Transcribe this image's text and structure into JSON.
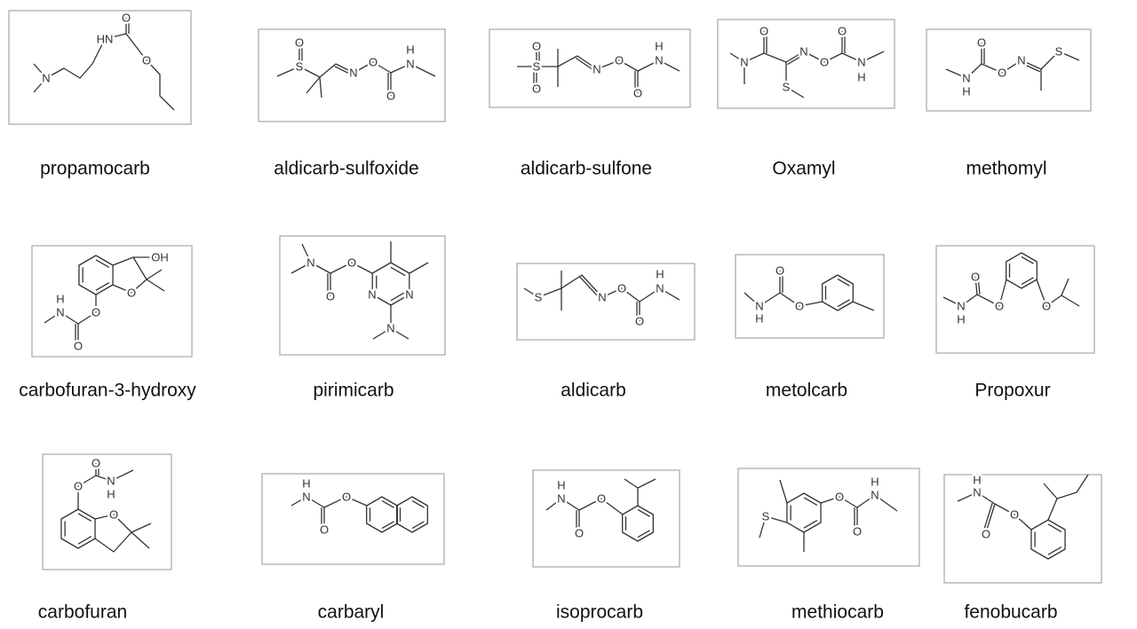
{
  "molecules": [
    {
      "name": "propamocarb",
      "atoms": [
        "HN",
        "O",
        "O",
        "N"
      ]
    },
    {
      "name": "aldicarb-sulfoxide",
      "atoms": [
        "O",
        "S",
        "N",
        "O",
        "O",
        "H",
        "N"
      ]
    },
    {
      "name": "aldicarb-sulfone",
      "atoms": [
        "O",
        "S",
        "O",
        "N",
        "O",
        "O",
        "H",
        "N"
      ]
    },
    {
      "name": "Oxamyl",
      "atoms": [
        "O",
        "N",
        "S",
        "N",
        "O",
        "O",
        "N",
        "H"
      ]
    },
    {
      "name": "methomyl",
      "atoms": [
        "O",
        "N",
        "H",
        "O",
        "N",
        "S"
      ]
    },
    {
      "name": "carbofuran-3-hydroxy",
      "atoms": [
        "OH",
        "O",
        "O",
        "H",
        "N",
        "O"
      ]
    },
    {
      "name": "pirimicarb",
      "atoms": [
        "N",
        "O",
        "O",
        "N",
        "N",
        "N"
      ]
    },
    {
      "name": "aldicarb",
      "atoms": [
        "S",
        "N",
        "O",
        "O",
        "H",
        "N"
      ]
    },
    {
      "name": "metolcarb",
      "atoms": [
        "O",
        "N",
        "H",
        "O"
      ]
    },
    {
      "name": "Propoxur",
      "atoms": [
        "O",
        "O",
        "N",
        "H",
        "O"
      ]
    },
    {
      "name": "carbofuran",
      "atoms": [
        "O",
        "O",
        "N",
        "H",
        "O"
      ]
    },
    {
      "name": "carbaryl",
      "atoms": [
        "H",
        "N",
        "O",
        "O"
      ]
    },
    {
      "name": "isoprocarb",
      "atoms": [
        "H",
        "N",
        "O",
        "O"
      ]
    },
    {
      "name": "methiocarb",
      "atoms": [
        "S",
        "O",
        "O",
        "H",
        "N"
      ]
    },
    {
      "name": "fenobucarb",
      "atoms": [
        "H",
        "N",
        "O",
        "O"
      ]
    }
  ]
}
